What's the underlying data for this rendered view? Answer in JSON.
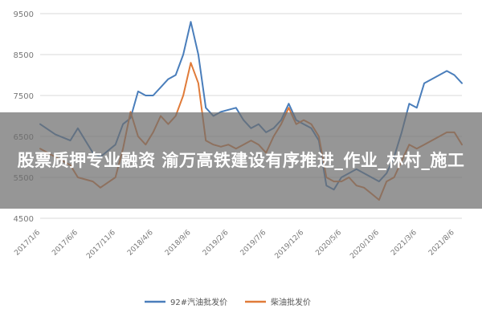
{
  "caption": "股票质押专业融资 渝万高铁建设有序推进_作业_林村_施工",
  "chart_data": {
    "type": "line",
    "title": "",
    "xlabel": "",
    "ylabel": "",
    "ylim": [
      4500,
      9500
    ],
    "yticks": [
      4500,
      5500,
      6500,
      7500,
      8500,
      9500
    ],
    "xticks": [
      "2017/1/6",
      "2017/6/6",
      "2017/11/6",
      "2018/4/6",
      "2018/9/6",
      "2019/2/6",
      "2019/7/6",
      "2019/12/6",
      "2020/5/6",
      "2020/10/6",
      "2021/3/6",
      "2021/8/6"
    ],
    "x": [
      "2017/1/6",
      "2017/3/6",
      "2017/5/6",
      "2017/6/6",
      "2017/8/6",
      "2017/9/6",
      "2017/11/6",
      "2017/12/6",
      "2018/1/6",
      "2018/2/6",
      "2018/3/6",
      "2018/4/6",
      "2018/5/6",
      "2018/6/6",
      "2018/7/6",
      "2018/8/6",
      "2018/9/6",
      "2018/10/6",
      "2018/11/6",
      "2018/12/6",
      "2019/1/6",
      "2019/2/6",
      "2019/3/6",
      "2019/4/6",
      "2019/5/6",
      "2019/6/6",
      "2019/7/6",
      "2019/8/6",
      "2019/9/6",
      "2019/10/6",
      "2019/11/6",
      "2019/12/6",
      "2020/1/6",
      "2020/2/6",
      "2020/3/6",
      "2020/4/6",
      "2020/5/6",
      "2020/6/6",
      "2020/7/6",
      "2020/8/6",
      "2020/9/6",
      "2020/10/6",
      "2020/11/6",
      "2020/12/6",
      "2021/1/6",
      "2021/2/6",
      "2021/3/6",
      "2021/4/6",
      "2021/5/6",
      "2021/6/6",
      "2021/7/6",
      "2021/8/6",
      "2021/9/6"
    ],
    "series": [
      {
        "name": "92#汽油批发价",
        "color": "#4a7ebb",
        "values": [
          6800,
          6550,
          6400,
          6700,
          6100,
          6000,
          6300,
          6800,
          6950,
          7600,
          7500,
          7500,
          7700,
          7900,
          8000,
          8500,
          9300,
          8500,
          7200,
          7000,
          7100,
          7150,
          7200,
          6900,
          6700,
          6800,
          6600,
          6700,
          6900,
          7300,
          6900,
          6800,
          6700,
          6400,
          5300,
          5200,
          5500,
          5600,
          5700,
          5600,
          5500,
          5400,
          5600,
          6000,
          6600,
          7300,
          7200,
          7800,
          7900,
          8000,
          8100,
          8000,
          7800
        ]
      },
      {
        "name": "柴油批发价",
        "color": "#e07b39",
        "values": [
          6200,
          6000,
          5800,
          5500,
          5400,
          5250,
          5500,
          6200,
          7100,
          6500,
          6300,
          6600,
          7000,
          6800,
          7000,
          7500,
          8300,
          7800,
          6400,
          6300,
          6250,
          6300,
          6200,
          6300,
          6400,
          6300,
          6100,
          6500,
          6800,
          7200,
          6800,
          6900,
          6800,
          6500,
          5500,
          5400,
          5400,
          5500,
          5300,
          5250,
          5100,
          4950,
          5400,
          5500,
          5900,
          6300,
          6200,
          6300,
          6400,
          6500,
          6600,
          6600,
          6300
        ]
      }
    ],
    "grid": true,
    "legend": "bottom"
  }
}
